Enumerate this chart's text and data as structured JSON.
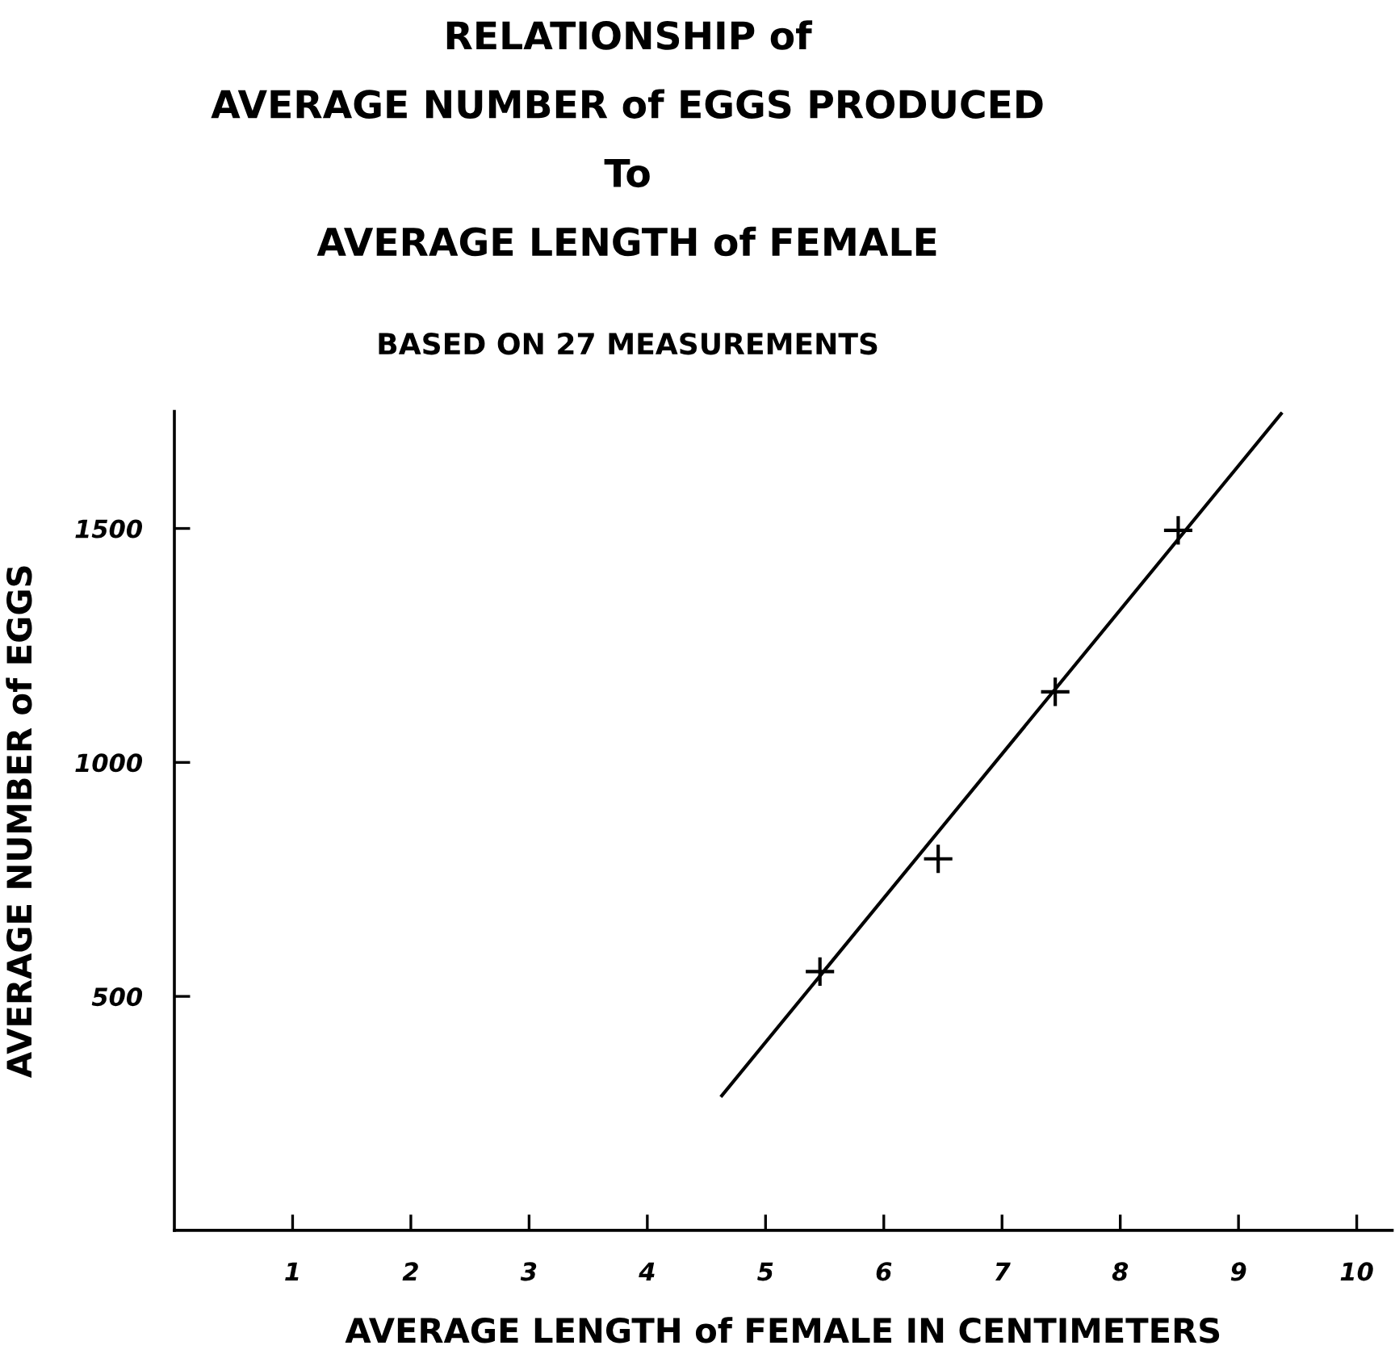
{
  "chart_data": {
    "type": "scatter",
    "title": "RELATIONSHIP of\nAVERAGE NUMBER of EGGS PRODUCED\nTo\nAVERAGE LENGTH of FEMALE",
    "subtitle": "BASED ON 27 MEASUREMENTS",
    "xlabel": "AVERAGE LENGTH of FEMALE IN CENTIMETERS",
    "ylabel": "AVERAGE NUMBER of EGGS",
    "marker": "cross",
    "grid": false,
    "xlim": [
      0,
      10.3
    ],
    "ylim": [
      0,
      1750
    ],
    "xticks": [
      1,
      2,
      3,
      4,
      5,
      6,
      7,
      8,
      9,
      10
    ],
    "yticks": [
      500,
      1000,
      1500
    ],
    "series": [
      {
        "color": "#000000",
        "x": [
          5.46,
          6.46,
          7.45,
          8.49
        ],
        "values": [
          553,
          794,
          1151,
          1496
        ]
      },
      {
        "type": "line",
        "color": "#000000",
        "x": [
          4.63,
          9.36
        ],
        "values": [
          288,
          1745
        ],
        "line_style": "solid",
        "marker": "none"
      }
    ]
  }
}
